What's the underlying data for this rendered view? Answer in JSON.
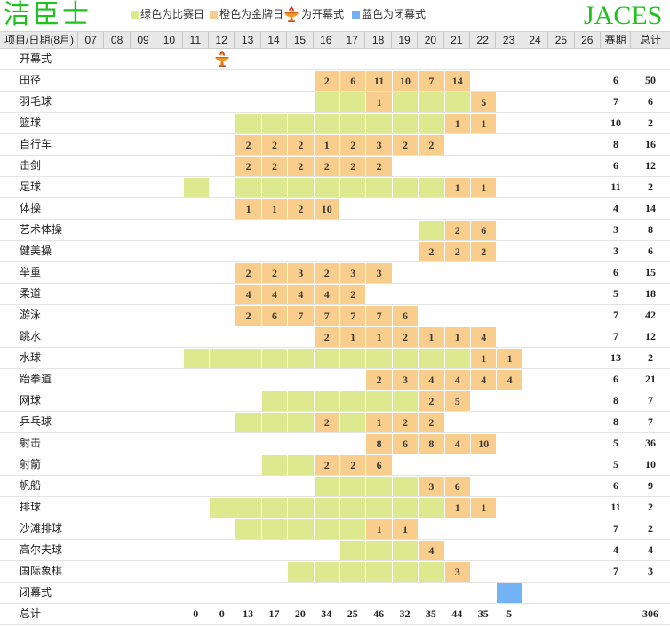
{
  "brand": {
    "name_cn": "洁臣士",
    "name_en": "JACES",
    "color": "#1fc21f"
  },
  "legend": {
    "competition": {
      "label": "绿色为比赛日",
      "color": "#dde98e"
    },
    "gold": {
      "label": "橙色为金牌日",
      "color": "#f9ce8c"
    },
    "opening": {
      "label": "为开幕式",
      "icon": "torch-icon"
    },
    "closing": {
      "label": "蓝色为闭幕式",
      "color": "#74b2f6"
    }
  },
  "chart_data": {
    "type": "table",
    "header": {
      "event": "项目/日期(8月)",
      "days": [
        "07",
        "08",
        "09",
        "10",
        "11",
        "12",
        "13",
        "14",
        "15",
        "16",
        "17",
        "18",
        "19",
        "20",
        "21",
        "22",
        "23",
        "24",
        "25",
        "26"
      ],
      "duration": "赛期",
      "total": "总计"
    },
    "rows": [
      {
        "event": "开幕式",
        "opening_day": 12
      },
      {
        "event": "田径",
        "competition_days": [
          16,
          17,
          18,
          19,
          20,
          21
        ],
        "gold_medals": {
          "16": 2,
          "17": 6,
          "18": 11,
          "19": 10,
          "20": 7,
          "21": 14
        },
        "duration": 6,
        "total": 50
      },
      {
        "event": "羽毛球",
        "competition_days": [
          16,
          17,
          18,
          19,
          20,
          21,
          22
        ],
        "gold_medals": {
          "18": 1,
          "22": 5
        },
        "duration": 7,
        "total": 6
      },
      {
        "event": "篮球",
        "competition_days": [
          13,
          14,
          15,
          16,
          17,
          18,
          19,
          20,
          21,
          22
        ],
        "gold_medals": {
          "21": 1,
          "22": 1
        },
        "duration": 10,
        "total": 2
      },
      {
        "event": "自行车",
        "competition_days": [
          13,
          14,
          15,
          16,
          17,
          18,
          19,
          20
        ],
        "gold_medals": {
          "13": 2,
          "14": 2,
          "15": 2,
          "16": 1,
          "17": 2,
          "18": 3,
          "19": 2,
          "20": 2
        },
        "duration": 8,
        "total": 16
      },
      {
        "event": "击剑",
        "competition_days": [
          13,
          14,
          15,
          16,
          17,
          18
        ],
        "gold_medals": {
          "13": 2,
          "14": 2,
          "15": 2,
          "16": 2,
          "17": 2,
          "18": 2
        },
        "duration": 6,
        "total": 12
      },
      {
        "event": "足球",
        "competition_days": [
          11,
          13,
          14,
          15,
          16,
          17,
          18,
          19,
          20,
          21,
          22
        ],
        "gold_medals": {
          "21": 1,
          "22": 1
        },
        "duration": 11,
        "total": 2
      },
      {
        "event": "体操",
        "competition_days": [
          13,
          14,
          15,
          16
        ],
        "gold_medals": {
          "13": 1,
          "14": 1,
          "15": 2,
          "16": 10
        },
        "duration": 4,
        "total": 14
      },
      {
        "event": "艺术体操",
        "competition_days": [
          20,
          21,
          22
        ],
        "gold_medals": {
          "21": 2,
          "22": 6
        },
        "duration": 3,
        "total": 8
      },
      {
        "event": "健美操",
        "competition_days": [
          20,
          21,
          22
        ],
        "gold_medals": {
          "20": 2,
          "21": 2,
          "22": 2
        },
        "duration": 3,
        "total": 6
      },
      {
        "event": "举重",
        "competition_days": [
          13,
          14,
          15,
          16,
          17,
          18
        ],
        "gold_medals": {
          "13": 2,
          "14": 2,
          "15": 3,
          "16": 2,
          "17": 3,
          "18": 3
        },
        "duration": 6,
        "total": 15
      },
      {
        "event": "柔道",
        "competition_days": [
          13,
          14,
          15,
          16,
          17
        ],
        "gold_medals": {
          "13": 4,
          "14": 4,
          "15": 4,
          "16": 4,
          "17": 2
        },
        "duration": 5,
        "total": 18
      },
      {
        "event": "游泳",
        "competition_days": [
          13,
          14,
          15,
          16,
          17,
          18,
          19
        ],
        "gold_medals": {
          "13": 2,
          "14": 6,
          "15": 7,
          "16": 7,
          "17": 7,
          "18": 7,
          "19": 6
        },
        "duration": 7,
        "total": 42
      },
      {
        "event": "跳水",
        "competition_days": [
          16,
          17,
          18,
          19,
          20,
          21,
          22
        ],
        "gold_medals": {
          "16": 2,
          "17": 1,
          "18": 1,
          "19": 2,
          "20": 1,
          "21": 1,
          "22": 4
        },
        "duration": 7,
        "total": 12
      },
      {
        "event": "水球",
        "competition_days": [
          11,
          12,
          13,
          14,
          15,
          16,
          17,
          18,
          19,
          20,
          21,
          22,
          23
        ],
        "gold_medals": {
          "22": 1,
          "23": 1
        },
        "duration": 13,
        "total": 2
      },
      {
        "event": "跆拳道",
        "competition_days": [
          18,
          19,
          20,
          21,
          22,
          23
        ],
        "gold_medals": {
          "18": 2,
          "19": 3,
          "20": 4,
          "21": 4,
          "22": 4,
          "23": 4
        },
        "duration": 6,
        "total": 21
      },
      {
        "event": "网球",
        "competition_days": [
          14,
          15,
          16,
          17,
          18,
          19,
          20,
          21
        ],
        "gold_medals": {
          "20": 2,
          "21": 5
        },
        "duration": 8,
        "total": 7
      },
      {
        "event": "乒乓球",
        "competition_days": [
          13,
          14,
          15,
          16,
          17,
          18,
          19,
          20
        ],
        "gold_medals": {
          "16": 2,
          "18": 1,
          "19": 2,
          "20": 2
        },
        "duration": 8,
        "total": 7
      },
      {
        "event": "射击",
        "competition_days": [
          18,
          19,
          20,
          21,
          22
        ],
        "gold_medals": {
          "18": 8,
          "19": 6,
          "20": 8,
          "21": 4,
          "22": 10
        },
        "duration": 5,
        "total": 36
      },
      {
        "event": "射箭",
        "competition_days": [
          14,
          15,
          16,
          17,
          18
        ],
        "gold_medals": {
          "16": 2,
          "17": 2,
          "18": 6
        },
        "duration": 5,
        "total": 10
      },
      {
        "event": "帆船",
        "competition_days": [
          16,
          17,
          18,
          19,
          20,
          21
        ],
        "gold_medals": {
          "20": 3,
          "21": 6
        },
        "duration": 6,
        "total": 9
      },
      {
        "event": "排球",
        "competition_days": [
          12,
          13,
          14,
          15,
          16,
          17,
          18,
          19,
          20,
          21,
          22
        ],
        "gold_medals": {
          "21": 1,
          "22": 1
        },
        "duration": 11,
        "total": 2
      },
      {
        "event": "沙滩排球",
        "competition_days": [
          13,
          14,
          15,
          16,
          17,
          18,
          19
        ],
        "gold_medals": {
          "18": 1,
          "19": 1
        },
        "duration": 7,
        "total": 2
      },
      {
        "event": "高尔夫球",
        "competition_days": [
          17,
          18,
          19,
          20
        ],
        "gold_medals": {
          "20": 4
        },
        "duration": 4,
        "total": 4
      },
      {
        "event": "国际象棋",
        "competition_days": [
          15,
          16,
          17,
          18,
          19,
          20,
          21
        ],
        "gold_medals": {
          "21": 3
        },
        "duration": 7,
        "total": 3
      },
      {
        "event": "闭幕式",
        "closing_day": 23
      }
    ],
    "totals": {
      "label": "总计",
      "daily_gold": {
        "11": 0,
        "12": 0,
        "13": 13,
        "14": 17,
        "15": 20,
        "16": 34,
        "17": 25,
        "18": 46,
        "19": 32,
        "20": 35,
        "21": 44,
        "22": 35,
        "23": 5
      },
      "total": 306
    }
  }
}
